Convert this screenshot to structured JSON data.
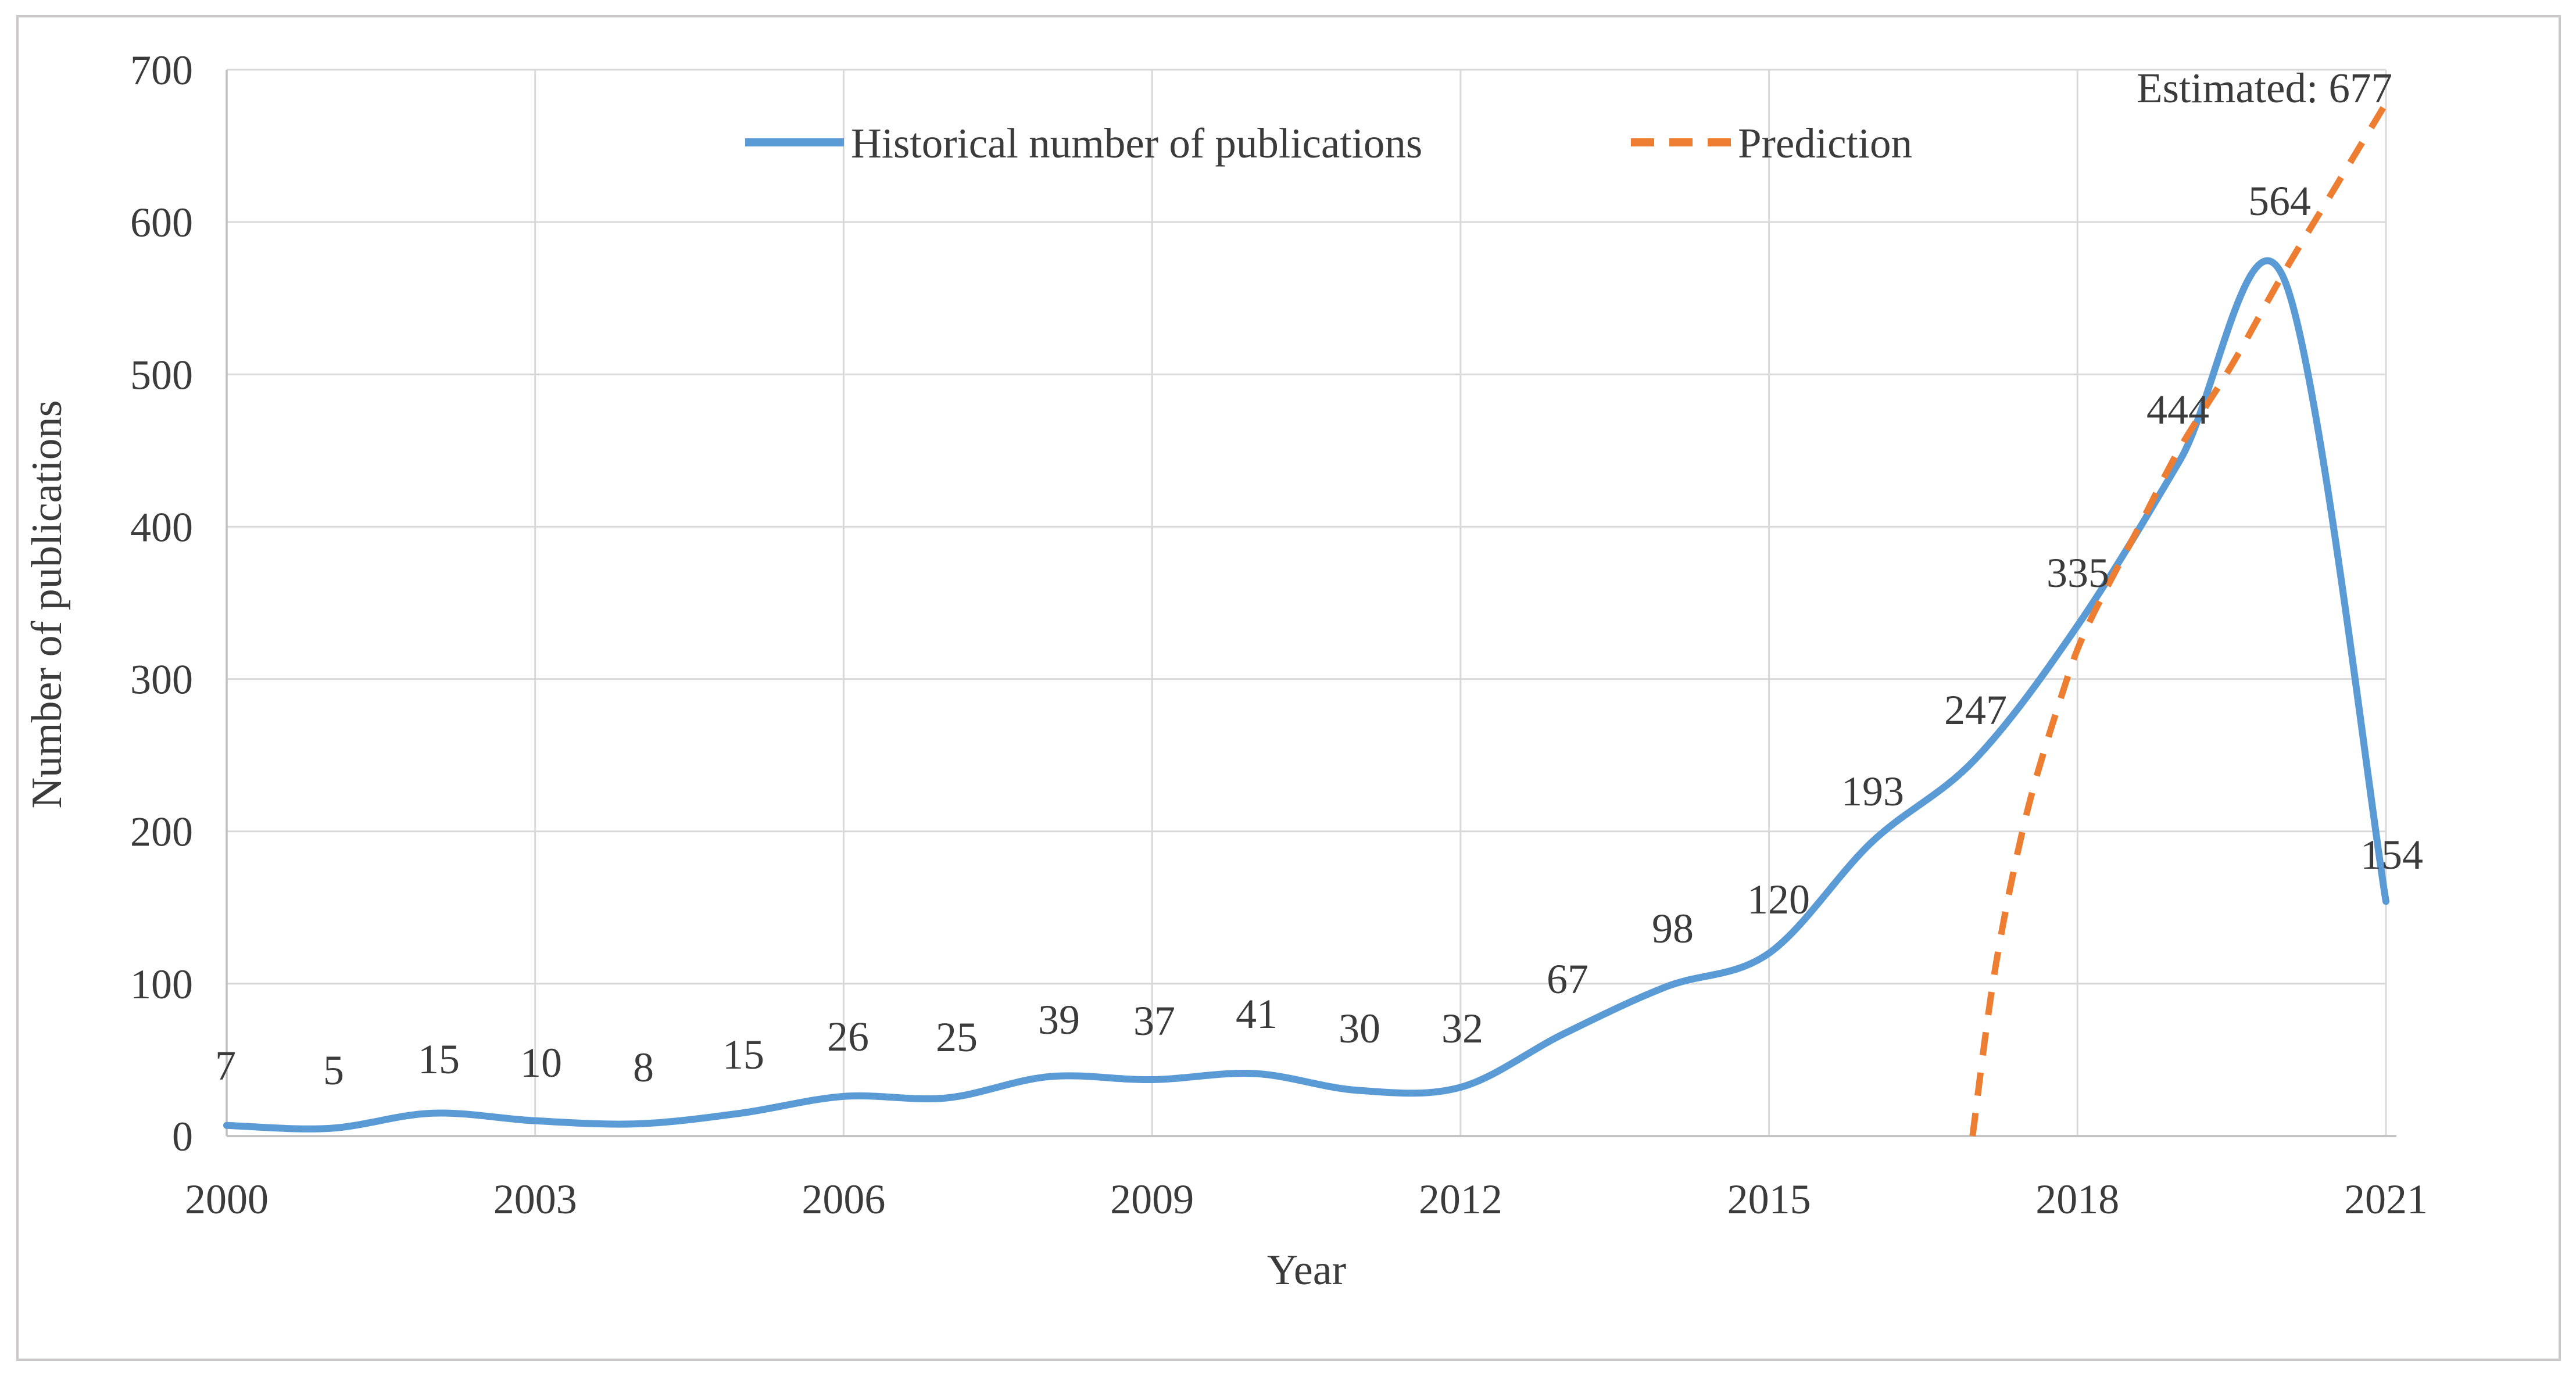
{
  "chart_data": {
    "type": "line",
    "title": "",
    "xlabel": "Year",
    "ylabel": "Number of publications",
    "xlim": [
      2000,
      2021
    ],
    "ylim": [
      0,
      700
    ],
    "x_ticks": [
      2000,
      2003,
      2006,
      2009,
      2012,
      2015,
      2018,
      2021
    ],
    "y_ticks": [
      0,
      100,
      200,
      300,
      400,
      500,
      600,
      700
    ],
    "grid": true,
    "legend_position": "top-center-inside",
    "colors": {
      "historical": "#5B9BD5",
      "prediction": "#ED7D31",
      "gridline": "#D9D9D9",
      "axis_line": "#BFBFBF",
      "text": "#3b3b3b",
      "border": "#c9c7c7",
      "background": "#ffffff"
    },
    "series": [
      {
        "name": "Historical number of publications",
        "style": "solid",
        "x": [
          2000,
          2001,
          2002,
          2003,
          2004,
          2005,
          2006,
          2007,
          2008,
          2009,
          2010,
          2011,
          2012,
          2013,
          2014,
          2015,
          2016,
          2017,
          2018,
          2019,
          2020,
          2021
        ],
        "values": [
          7,
          5,
          15,
          10,
          8,
          15,
          26,
          25,
          39,
          37,
          41,
          30,
          32,
          67,
          98,
          120,
          193,
          247,
          335,
          444,
          564,
          154
        ],
        "labels": [
          "7",
          "5",
          "15",
          "10",
          "8",
          "15",
          "26",
          "25",
          "39",
          "37",
          "41",
          "30",
          "32",
          "67",
          "98",
          "120",
          "193",
          "247",
          "335",
          "444",
          "564",
          "154"
        ],
        "label_dx": [
          -2,
          7,
          11,
          10,
          9,
          4,
          8,
          18,
          17,
          4,
          3,
          3,
          3,
          7,
          11,
          16,
          2,
          2,
          1,
          -4,
          -6,
          10
        ],
        "label_dy": [
          104,
          101,
          94,
          101,
          98,
          102,
          104,
          105,
          99,
          102,
          104,
          107,
          102,
          95,
          101,
          93,
          88,
          87,
          92,
          87,
          132,
          81
        ]
      },
      {
        "name": "Prediction",
        "style": "dashed",
        "points": [
          [
            2016.98,
            0
          ],
          [
            2017.2,
            110
          ],
          [
            2017.5,
            210
          ],
          [
            2017.85,
            290
          ],
          [
            2018.1,
            335
          ],
          [
            2018.6,
            400
          ],
          [
            2019.0,
            452
          ],
          [
            2019.5,
            506
          ],
          [
            2020.0,
            566
          ],
          [
            2020.5,
            622
          ],
          [
            2021.0,
            678
          ]
        ]
      }
    ],
    "annotation": {
      "text": "Estimated: 677",
      "x": 2019.82,
      "y": 688
    }
  }
}
